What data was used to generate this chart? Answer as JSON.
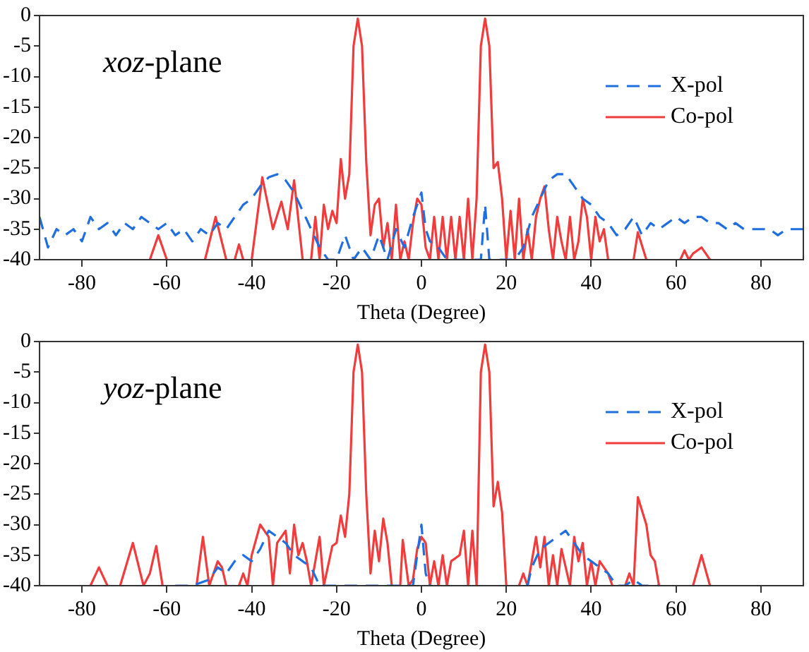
{
  "chart_data": [
    {
      "type": "line",
      "xlabel": "Theta (Degree)",
      "annotations": [
        "xoz-plane"
      ],
      "xlim": [
        -90,
        90
      ],
      "xticks": [
        -80,
        -60,
        -40,
        -20,
        0,
        20,
        40,
        60,
        80
      ],
      "ylim": [
        -40,
        0
      ],
      "yticks": [
        0,
        -5,
        -10,
        -15,
        -20,
        -25,
        -30,
        -35,
        -40
      ],
      "grid": false,
      "legend": "top right",
      "marker": "none",
      "series": [
        {
          "name": "X-pol",
          "color": "#1f6fe0",
          "line_style": "dashed",
          "x": [
            -90,
            -88,
            -86,
            -84,
            -82,
            -80,
            -78,
            -76,
            -74,
            -72,
            -70,
            -68,
            -66,
            -64,
            -62,
            -60,
            -58,
            -56,
            -54,
            -52,
            -50,
            -48,
            -46,
            -44,
            -42,
            -40,
            -38,
            -36,
            -34,
            -32,
            -30,
            -28,
            -26,
            -24,
            -22,
            -20,
            -18,
            -16,
            -14,
            -12,
            -10,
            -8,
            -6,
            -4,
            -2,
            0,
            1,
            2,
            4,
            6,
            14,
            15,
            16,
            22,
            24,
            26,
            28,
            30,
            32,
            34,
            36,
            38,
            40,
            42,
            44,
            46,
            48,
            50,
            52,
            54,
            56,
            58,
            60,
            62,
            64,
            66,
            68,
            70,
            72,
            74,
            76,
            78,
            80,
            82,
            84,
            86,
            88,
            90
          ],
          "values": [
            -33,
            -38,
            -35,
            -36,
            -35,
            -37,
            -33,
            -35,
            -34,
            -36,
            -34,
            -35,
            -33,
            -34,
            -35,
            -34,
            -36,
            -35,
            -37,
            -35,
            -36,
            -34,
            -35,
            -33,
            -31,
            -30,
            -28,
            -26.5,
            -26,
            -27,
            -29,
            -32,
            -35,
            -38,
            -40,
            -40,
            -36,
            -40,
            -38,
            -40,
            -36,
            -40,
            -35,
            -38,
            -33,
            -29,
            -35,
            -37,
            -38,
            -40,
            -40,
            -31,
            -40,
            -40,
            -38,
            -33,
            -30,
            -27,
            -26,
            -26,
            -28,
            -30,
            -31,
            -33,
            -34,
            -36,
            -35,
            -33,
            -36,
            -34,
            -35,
            -34,
            -33,
            -34,
            -33,
            -33,
            -34,
            -34,
            -35,
            -34,
            -35,
            -35,
            -35,
            -35,
            -36,
            -35,
            -35,
            -35
          ]
        },
        {
          "name": "Co-pol",
          "color": "#f03c3c",
          "line_style": "solid",
          "x": [
            -64,
            -62,
            -60,
            -55,
            -51,
            -48.5,
            -46,
            -45,
            -44,
            -43,
            -42,
            -41,
            -40,
            -37.5,
            -35,
            -33,
            -31.5,
            -30,
            -28,
            -27,
            -26,
            -25,
            -24,
            -23,
            -22,
            -21,
            -20,
            -19,
            -18,
            -17,
            -16,
            -15,
            -14,
            -13,
            -12,
            -11,
            -10,
            -9,
            -8,
            -7,
            -6,
            -5,
            -4,
            -3,
            -2,
            -1,
            0,
            1,
            2,
            3,
            4,
            5,
            6,
            7,
            8,
            9,
            10,
            11,
            12,
            13,
            14,
            15,
            16,
            17,
            18,
            19,
            20,
            21,
            22,
            23,
            24,
            25,
            26,
            27,
            28,
            29,
            30,
            31,
            32,
            33,
            34,
            35,
            36,
            37,
            38,
            39,
            40,
            41,
            42,
            43,
            44,
            47,
            50,
            51,
            53,
            57,
            61,
            62,
            63,
            64,
            66,
            68
          ],
          "values": [
            -40,
            -36,
            -40,
            null,
            -40,
            -33,
            -40,
            null,
            -40,
            -37.5,
            -40,
            null,
            -40,
            -26.5,
            -35,
            -30.5,
            -35,
            -27,
            -40,
            null,
            -40,
            -33,
            -40,
            -31,
            -35,
            -32,
            -34,
            -23.5,
            -30,
            -26,
            -5,
            -0.5,
            -5,
            -24,
            -36,
            -31,
            -30,
            -38,
            -34,
            -40,
            -31,
            -40,
            -37,
            -40,
            -34,
            -30,
            -31,
            -38,
            -40,
            -33,
            -40,
            -33,
            -40,
            -33,
            -40,
            -33,
            -40,
            -30,
            -40,
            -30,
            -5,
            -0.5,
            -5,
            -25,
            -24,
            -30,
            -40,
            -32,
            -40,
            -30,
            -40,
            -35,
            -40,
            -33,
            -30,
            -28,
            -35,
            -40,
            -33,
            -37,
            -40,
            -33,
            -40,
            -37,
            -30,
            -33,
            -40,
            -33,
            -37,
            -35,
            -40,
            null,
            -40,
            -35.5,
            -40,
            null,
            -40,
            -38.5,
            -40,
            -39,
            -38,
            -40
          ]
        }
      ]
    },
    {
      "type": "line",
      "xlabel": "Theta (Degree)",
      "annotations": [
        "yoz-plane"
      ],
      "xlim": [
        -90,
        90
      ],
      "xticks": [
        -80,
        -60,
        -40,
        -20,
        0,
        20,
        40,
        60,
        80
      ],
      "ylim": [
        -40,
        0
      ],
      "yticks": [
        0,
        -5,
        -10,
        -15,
        -20,
        -25,
        -30,
        -35,
        -40
      ],
      "grid": false,
      "legend": "top right",
      "marker": "none",
      "series": [
        {
          "name": "X-pol",
          "color": "#1f6fe0",
          "line_style": "dashed",
          "x": [
            -58,
            -54,
            -50,
            -48,
            -46,
            -44,
            -42,
            -40,
            -38,
            -36,
            -34,
            -32,
            -30,
            -28,
            -26,
            -24,
            -2,
            0,
            1,
            2,
            13,
            25,
            26,
            28,
            30,
            32,
            34,
            36,
            38,
            40,
            42,
            44,
            46,
            48,
            50,
            52,
            54,
            56
          ],
          "values": [
            -40,
            -40,
            -39,
            -37,
            -38,
            -36,
            -35,
            -36,
            -34,
            -31,
            -32,
            -33,
            -35,
            -36,
            -37,
            -40,
            -40,
            -30,
            -38,
            -40,
            null,
            -40,
            -37,
            -34,
            -33,
            -32,
            -31,
            -33,
            -35,
            -36,
            -37,
            -38,
            -40,
            -40,
            -39,
            -40,
            -40,
            -40
          ]
        },
        {
          "name": "Co-pol",
          "color": "#f03c3c",
          "line_style": "solid",
          "x": [
            -78,
            -76,
            -74,
            -72,
            -71,
            -68,
            -65.5,
            -64,
            -62.5,
            -61,
            -57,
            -53,
            -51.5,
            -50,
            -48,
            -47,
            -46,
            -44,
            -43,
            -42,
            -41,
            -40,
            -38,
            -36,
            -35,
            -34,
            -32,
            -31,
            -30,
            -29,
            -28,
            -27,
            -26,
            -24,
            -23,
            -21,
            -20,
            -19,
            -18,
            -17,
            -16,
            -15,
            -14,
            -13,
            -12,
            -11,
            -10,
            -9,
            -8,
            -7,
            -6,
            -5,
            -4.4,
            -3,
            -2,
            -1,
            0,
            1,
            2,
            3,
            4,
            5,
            6,
            7,
            9,
            10,
            11,
            12,
            13,
            14,
            15,
            16,
            17,
            18,
            19,
            20,
            22,
            23,
            24,
            25,
            26,
            27,
            28,
            29,
            30,
            31,
            32,
            33,
            35,
            36,
            37,
            38,
            39,
            40,
            41,
            42,
            43,
            44,
            45,
            47,
            48,
            49,
            50,
            51,
            53,
            54,
            55,
            56,
            60,
            64,
            66,
            68
          ],
          "values": [
            -40,
            -37,
            -40,
            null,
            -40,
            -33,
            -40,
            -38,
            -33.5,
            -40,
            null,
            -40,
            -32,
            -40,
            -36,
            -37,
            -40,
            null,
            -40,
            -38,
            -40,
            -35,
            -30,
            -32,
            -40,
            -33,
            -31,
            -38,
            -30,
            -35,
            -33,
            -36,
            -40,
            -32,
            -40,
            -33.5,
            -33,
            -28.5,
            -32,
            -25,
            -5,
            -0.5,
            -5,
            -25,
            -38,
            -31,
            -36,
            -29,
            -33,
            -40,
            null,
            -40,
            -32.5,
            -40,
            -39,
            -34,
            -32,
            -33,
            -40,
            -36,
            -40,
            -35,
            -40,
            -36,
            -35,
            -31,
            -40,
            -31,
            -40,
            -5,
            -0.5,
            -5,
            -27,
            -23,
            -28,
            -40,
            null,
            -40,
            -38,
            -40,
            -36,
            -32,
            -37,
            -32,
            -40,
            -35,
            -40,
            -34,
            -40,
            -32,
            -36,
            -33,
            -40,
            -36,
            -40,
            -36,
            -37,
            -38,
            -40,
            null,
            -40,
            -38,
            -40,
            -25.5,
            -30,
            -35,
            -36,
            -40,
            null,
            -40,
            -35,
            -40
          ]
        }
      ]
    }
  ]
}
